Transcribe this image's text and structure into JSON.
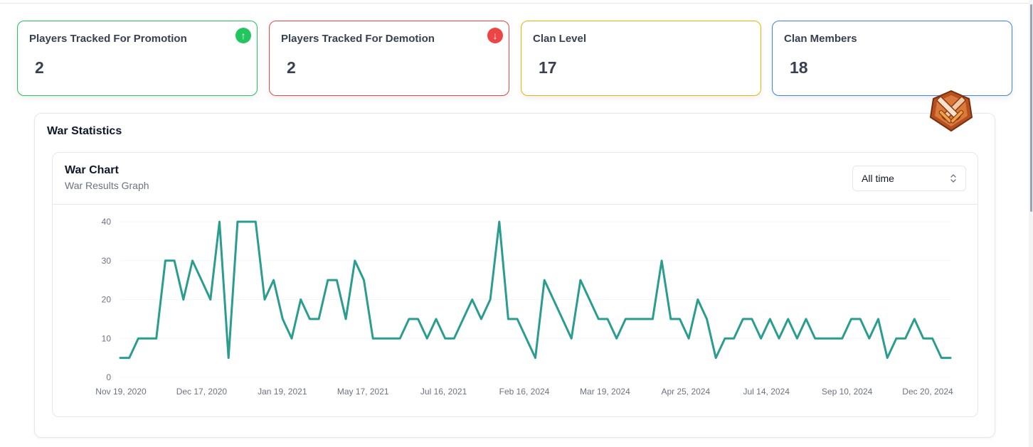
{
  "stats": [
    {
      "title": "Players Tracked For Promotion",
      "value": "2",
      "accent": "#22c55e",
      "indicator": "arrow-up-icon",
      "glyph": "↑"
    },
    {
      "title": "Players Tracked For Demotion",
      "value": "2",
      "accent": "#ef4444",
      "indicator": "arrow-down-icon",
      "glyph": "↓"
    },
    {
      "title": "Clan Level",
      "value": "17",
      "accent": "#eab308"
    },
    {
      "title": "Clan Members",
      "value": "18",
      "accent": "#3b82f6"
    }
  ],
  "war": {
    "title": "War Statistics",
    "chart_title": "War Chart",
    "chart_subtitle": "War Results Graph",
    "range_selected": "All time"
  },
  "chart_data": {
    "type": "line",
    "title": "War Chart",
    "subtitle": "War Results Graph",
    "series": [
      {
        "name": "War Results",
        "color": "#2a9d8f",
        "values": [
          5,
          5,
          10,
          10,
          10,
          30,
          30,
          20,
          30,
          25,
          20,
          40,
          5,
          40,
          40,
          40,
          20,
          25,
          15,
          10,
          20,
          15,
          15,
          25,
          25,
          15,
          30,
          25,
          10,
          10,
          10,
          10,
          15,
          15,
          10,
          15,
          10,
          10,
          15,
          20,
          15,
          20,
          40,
          15,
          15,
          10,
          5,
          25,
          20,
          15,
          10,
          25,
          20,
          15,
          15,
          10,
          15,
          15,
          15,
          15,
          30,
          15,
          15,
          10,
          20,
          15,
          5,
          10,
          10,
          15,
          15,
          10,
          15,
          10,
          15,
          10,
          15,
          10,
          10,
          10,
          10,
          15,
          15,
          10,
          15,
          5,
          10,
          10,
          15,
          10,
          10,
          5,
          5
        ]
      }
    ],
    "x_tick_labels": [
      "Nov 19, 2020",
      "Dec 17, 2020",
      "Jan 19, 2021",
      "May 17, 2021",
      "Jul 16, 2021",
      "Feb 16, 2024",
      "Mar 19, 2024",
      "Apr 25, 2024",
      "Jul 14, 2024",
      "Sep 10, 2024",
      "Dec 20, 2024"
    ],
    "y_ticks": [
      0,
      10,
      20,
      30,
      40
    ],
    "ylim": [
      0,
      40
    ],
    "grid": true
  }
}
